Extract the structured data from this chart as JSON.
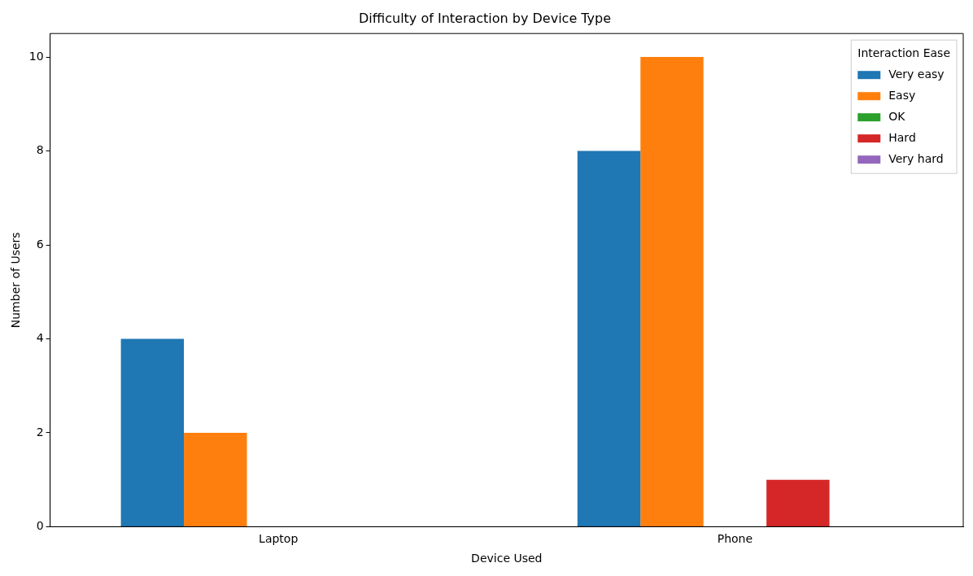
{
  "chart_data": {
    "type": "bar",
    "title": "Difficulty of Interaction by Device Type",
    "xlabel": "Device Used",
    "ylabel": "Number of Users",
    "legend_title": "Interaction Ease",
    "categories": [
      "Laptop",
      "Phone"
    ],
    "series": [
      {
        "name": "Very easy",
        "color": "#1f77b4",
        "values": [
          4,
          8
        ]
      },
      {
        "name": "Easy",
        "color": "#ff7f0e",
        "values": [
          2,
          10
        ]
      },
      {
        "name": "OK",
        "color": "#2ca02c",
        "values": [
          0,
          0
        ]
      },
      {
        "name": "Hard",
        "color": "#d62728",
        "values": [
          0,
          1
        ]
      },
      {
        "name": "Very hard",
        "color": "#9467bd",
        "values": [
          0,
          0
        ]
      }
    ],
    "ylim": [
      0,
      10.5
    ],
    "yticks": [
      0,
      2,
      4,
      6,
      8,
      10
    ],
    "grid": false,
    "legend": "top right"
  }
}
